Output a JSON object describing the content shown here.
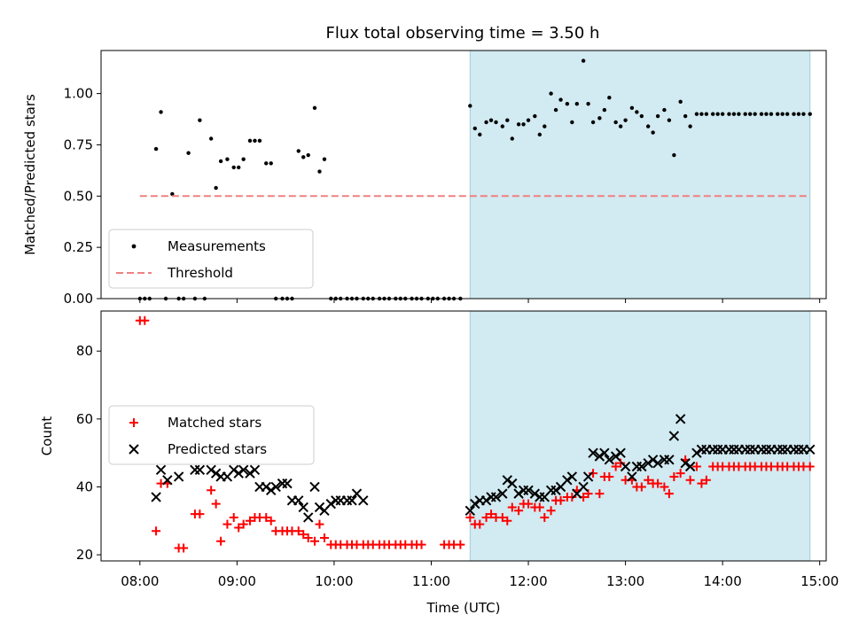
{
  "chart_data": [
    {
      "type": "scatter",
      "title": "Flux total observing time = 3.50 h",
      "ylabel": "Matched/Predicted stars",
      "xlabel": "",
      "xlim": [
        "07:36",
        "15:04"
      ],
      "ylim": [
        0,
        1.21
      ],
      "yticks": [
        "0.00",
        "0.25",
        "0.50",
        "0.75",
        "1.00"
      ],
      "shaded_interval": [
        "11:24",
        "14:54"
      ],
      "shade_color": "#add8e6",
      "legend": {
        "position": "lower-left",
        "entries": [
          {
            "label": "Measurements"
          },
          {
            "label": "Threshold"
          }
        ]
      },
      "series": [
        {
          "name": "Measurements",
          "marker": "dot",
          "color": "#000000",
          "x": [
            "08:00",
            "08:03",
            "08:06",
            "08:10",
            "08:13",
            "08:16",
            "08:20",
            "08:24",
            "08:27",
            "08:30",
            "08:34",
            "08:37",
            "08:40",
            "08:44",
            "08:47",
            "08:50",
            "08:54",
            "08:58",
            "09:01",
            "09:04",
            "09:08",
            "09:11",
            "09:14",
            "09:18",
            "09:21",
            "09:24",
            "09:28",
            "09:31",
            "09:34",
            "09:38",
            "09:41",
            "09:44",
            "09:48",
            "09:51",
            "09:54",
            "09:58",
            "10:01",
            "10:04",
            "10:08",
            "10:11",
            "10:14",
            "10:18",
            "10:21",
            "10:24",
            "10:28",
            "10:31",
            "10:34",
            "10:38",
            "10:41",
            "10:44",
            "10:48",
            "10:51",
            "10:54",
            "10:58",
            "11:01",
            "11:04",
            "11:08",
            "11:11",
            "11:14",
            "11:18",
            "11:24",
            "11:27",
            "11:30",
            "11:34",
            "11:37",
            "11:40",
            "11:44",
            "11:47",
            "11:50",
            "11:54",
            "11:57",
            "12:00",
            "12:04",
            "12:07",
            "12:10",
            "12:14",
            "12:17",
            "12:20",
            "12:24",
            "12:27",
            "12:30",
            "12:34",
            "12:37",
            "12:40",
            "12:44",
            "12:47",
            "12:50",
            "12:54",
            "12:57",
            "13:00",
            "13:04",
            "13:07",
            "13:10",
            "13:14",
            "13:17",
            "13:20",
            "13:24",
            "13:27",
            "13:30",
            "13:34",
            "13:37",
            "13:40",
            "13:44",
            "13:47",
            "13:50",
            "13:54",
            "13:57",
            "14:00",
            "14:04",
            "14:07",
            "14:10",
            "14:14",
            "14:17",
            "14:20",
            "14:24",
            "14:27",
            "14:30",
            "14:34",
            "14:37",
            "14:40",
            "14:44",
            "14:47",
            "14:50",
            "14:54"
          ],
          "y": [
            0,
            0,
            0,
            0.73,
            0.91,
            0,
            0.51,
            0,
            0,
            0.71,
            0,
            0.87,
            0,
            0.78,
            0.54,
            0.67,
            0.68,
            0.64,
            0.64,
            0.68,
            0.77,
            0.77,
            0.77,
            0.66,
            0.66,
            0,
            0,
            0,
            0,
            0.72,
            0.69,
            0.7,
            0.93,
            0.62,
            0.68,
            0,
            0,
            0,
            0,
            0,
            0,
            0,
            0,
            0,
            0,
            0,
            0,
            0,
            0,
            0,
            0,
            0,
            0,
            0,
            0,
            0,
            0,
            0,
            0,
            0,
            0.94,
            0.83,
            0.8,
            0.86,
            0.87,
            0.86,
            0.84,
            0.87,
            0.78,
            0.85,
            0.85,
            0.87,
            0.89,
            0.8,
            0.84,
            1.0,
            0.92,
            0.97,
            0.95,
            0.86,
            0.95,
            1.16,
            0.95,
            0.86,
            0.88,
            0.92,
            0.98,
            0.86,
            0.84,
            0.87,
            0.93,
            0.91,
            0.89,
            0.84,
            0.81,
            0.89,
            0.92,
            0.87,
            0.7,
            0.96,
            0.89,
            0.84,
            0.9,
            0.9,
            0.9,
            0.9,
            0.9,
            0.9,
            0.9,
            0.9,
            0.9,
            0.9,
            0.9,
            0.9,
            0.9,
            0.9,
            0.9,
            0.9,
            0.9,
            0.9,
            0.9,
            0.9,
            0.9,
            0.9
          ]
        },
        {
          "name": "Threshold",
          "style": "dashed",
          "color": "#f08080",
          "x": [
            "08:00",
            "14:54"
          ],
          "y": [
            0.5,
            0.5
          ]
        }
      ]
    },
    {
      "type": "scatter",
      "title": "",
      "ylabel": "Count",
      "xlabel": "Time (UTC)",
      "xlim": [
        "07:36",
        "15:04"
      ],
      "ylim": [
        18.2,
        91.8
      ],
      "yticks": [
        "20",
        "40",
        "60",
        "80"
      ],
      "xticks": [
        "08:00",
        "09:00",
        "10:00",
        "11:00",
        "12:00",
        "13:00",
        "14:00",
        "15:00"
      ],
      "shaded_interval": [
        "11:24",
        "14:54"
      ],
      "shade_color": "#add8e6",
      "legend": {
        "position": "center-left",
        "entries": [
          {
            "label": "Matched stars"
          },
          {
            "label": "Predicted stars"
          }
        ]
      },
      "series": [
        {
          "name": "Matched stars",
          "marker": "plus",
          "color": "#ff0000",
          "x": [
            "08:00",
            "08:03",
            "08:10",
            "08:13",
            "08:17",
            "08:24",
            "08:27",
            "08:34",
            "08:37",
            "08:44",
            "08:47",
            "08:50",
            "08:54",
            "08:58",
            "09:01",
            "09:04",
            "09:08",
            "09:11",
            "09:14",
            "09:18",
            "09:21",
            "09:24",
            "09:28",
            "09:31",
            "09:34",
            "09:38",
            "09:41",
            "09:44",
            "09:48",
            "09:51",
            "09:54",
            "09:58",
            "10:01",
            "10:04",
            "10:08",
            "10:11",
            "10:14",
            "10:18",
            "10:21",
            "10:24",
            "10:28",
            "10:31",
            "10:34",
            "10:38",
            "10:41",
            "10:44",
            "10:48",
            "10:51",
            "10:54",
            "11:08",
            "11:11",
            "11:14",
            "11:18",
            "11:24",
            "11:27",
            "11:30",
            "11:34",
            "11:37",
            "11:40",
            "11:44",
            "11:47",
            "11:50",
            "11:54",
            "11:57",
            "12:00",
            "12:04",
            "12:07",
            "12:10",
            "12:14",
            "12:17",
            "12:20",
            "12:24",
            "12:27",
            "12:30",
            "12:34",
            "12:37",
            "12:40",
            "12:44",
            "12:47",
            "12:50",
            "12:54",
            "12:57",
            "13:00",
            "13:04",
            "13:07",
            "13:10",
            "13:14",
            "13:17",
            "13:20",
            "13:24",
            "13:27",
            "13:30",
            "13:34",
            "13:37",
            "13:40",
            "13:44",
            "13:47",
            "13:50",
            "13:54",
            "13:57",
            "14:00",
            "14:04",
            "14:07",
            "14:10",
            "14:14",
            "14:17",
            "14:20",
            "14:24",
            "14:27",
            "14:30",
            "14:34",
            "14:37",
            "14:40",
            "14:44",
            "14:47",
            "14:50",
            "14:54"
          ],
          "y": [
            89,
            89,
            27,
            41,
            41,
            22,
            22,
            32,
            32,
            39,
            35,
            24,
            29,
            31,
            28,
            29,
            30,
            31,
            31,
            31,
            30,
            27,
            27,
            27,
            27,
            27,
            26,
            25,
            24,
            29,
            25,
            23,
            23,
            23,
            23,
            23,
            23,
            23,
            23,
            23,
            23,
            23,
            23,
            23,
            23,
            23,
            23,
            23,
            23,
            23,
            23,
            23,
            23,
            31,
            29,
            29,
            31,
            32,
            31,
            31,
            30,
            34,
            33,
            35,
            35,
            34,
            34,
            31,
            33,
            36,
            36,
            37,
            37,
            39,
            37,
            38,
            44,
            38,
            43,
            43,
            46,
            47,
            42,
            42,
            40,
            40,
            42,
            41,
            41,
            40,
            38,
            43,
            44,
            48,
            42,
            46,
            41,
            42,
            46,
            46,
            46,
            46,
            46,
            46,
            46,
            46,
            46,
            46,
            46,
            46,
            46,
            46,
            46,
            46,
            46,
            46,
            46
          ]
        },
        {
          "name": "Predicted stars",
          "marker": "x",
          "color": "#000000",
          "x": [
            "08:10",
            "08:13",
            "08:17",
            "08:24",
            "08:34",
            "08:37",
            "08:44",
            "08:47",
            "08:50",
            "08:54",
            "08:58",
            "09:01",
            "09:04",
            "09:08",
            "09:11",
            "09:14",
            "09:18",
            "09:21",
            "09:24",
            "09:28",
            "09:31",
            "09:34",
            "09:38",
            "09:41",
            "09:44",
            "09:48",
            "09:51",
            "09:54",
            "09:58",
            "10:01",
            "10:04",
            "10:08",
            "10:11",
            "10:14",
            "10:18",
            "11:24",
            "11:27",
            "11:30",
            "11:34",
            "11:37",
            "11:40",
            "11:44",
            "11:47",
            "11:50",
            "11:54",
            "11:57",
            "12:00",
            "12:04",
            "12:07",
            "12:10",
            "12:14",
            "12:17",
            "12:20",
            "12:24",
            "12:27",
            "12:30",
            "12:34",
            "12:37",
            "12:40",
            "12:44",
            "12:47",
            "12:50",
            "12:54",
            "12:57",
            "13:00",
            "13:04",
            "13:07",
            "13:10",
            "13:14",
            "13:17",
            "13:20",
            "13:24",
            "13:27",
            "13:30",
            "13:34",
            "13:37",
            "13:40",
            "13:44",
            "13:47",
            "13:50",
            "13:54",
            "13:57",
            "14:00",
            "14:04",
            "14:07",
            "14:10",
            "14:14",
            "14:17",
            "14:20",
            "14:24",
            "14:27",
            "14:30",
            "14:34",
            "14:37",
            "14:40",
            "14:44",
            "14:47",
            "14:50",
            "14:54"
          ],
          "y": [
            37,
            45,
            42,
            43,
            45,
            45,
            45,
            44,
            43,
            43,
            45,
            44,
            45,
            44,
            45,
            40,
            40,
            39,
            40,
            41,
            41,
            36,
            36,
            34,
            31,
            40,
            34,
            33,
            35,
            36,
            36,
            36,
            36,
            38,
            36,
            33,
            35,
            36,
            36,
            37,
            37,
            38,
            42,
            41,
            38,
            39,
            39,
            38,
            37,
            37,
            39,
            39,
            40,
            42,
            43,
            38,
            40,
            43,
            50,
            49,
            50,
            48,
            49,
            50,
            46,
            43,
            46,
            46,
            47,
            48,
            47,
            48,
            48,
            55,
            60,
            47,
            46,
            50,
            51,
            51,
            51,
            51,
            51,
            51,
            51,
            51,
            51,
            51,
            51,
            51,
            51,
            51,
            51,
            51,
            51,
            51,
            51,
            51,
            51
          ]
        }
      ]
    }
  ]
}
